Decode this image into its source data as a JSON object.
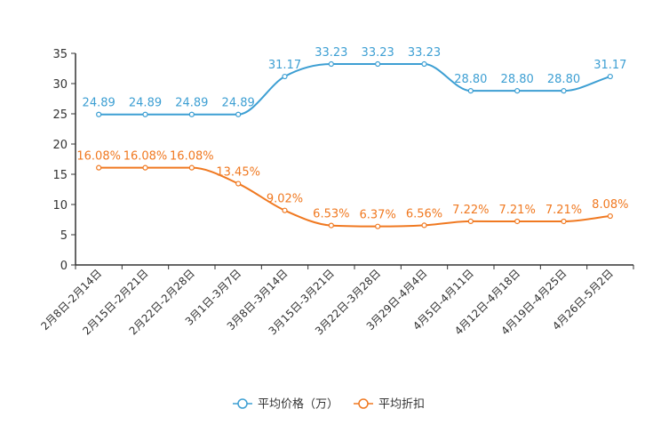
{
  "chart_data": {
    "type": "line",
    "title": "",
    "xlabel": "",
    "ylabel": "",
    "ylim": [
      0,
      35
    ],
    "yticks": [
      0,
      5,
      10,
      15,
      20,
      25,
      30,
      35
    ],
    "grid": false,
    "legend_position": "bottom-center",
    "categories": [
      "2月8日-2月14日",
      "2月15日-2月21日",
      "2月22日-2月28日",
      "3月1日-3月7日",
      "3月8日-3月14日",
      "3月15日-3月21日",
      "3月22日-3月28日",
      "3月29日-4月4日",
      "4月5日-4月11日",
      "4月12日-4月18日",
      "4月19日-4月25日",
      "4月26日-5月2日"
    ],
    "series": [
      {
        "name": "平均价格（万）",
        "color": "#3d9fd3",
        "values": [
          24.89,
          24.89,
          24.89,
          24.89,
          31.17,
          33.23,
          33.23,
          33.23,
          28.8,
          28.8,
          28.8,
          31.17
        ],
        "labels": [
          "24.89",
          "24.89",
          "24.89",
          "24.89",
          "31.17",
          "33.23",
          "33.23",
          "33.23",
          "28.80",
          "28.80",
          "28.80",
          "31.17"
        ]
      },
      {
        "name": "平均折扣",
        "color": "#f07921",
        "values": [
          16.08,
          16.08,
          16.08,
          13.45,
          9.02,
          6.53,
          6.37,
          6.56,
          7.22,
          7.21,
          7.21,
          8.08
        ],
        "labels": [
          "16.08%",
          "16.08%",
          "16.08%",
          "13.45%",
          "9.02%",
          "6.53%",
          "6.37%",
          "6.56%",
          "7.22%",
          "7.21%",
          "7.21%",
          "8.08%"
        ]
      }
    ]
  }
}
